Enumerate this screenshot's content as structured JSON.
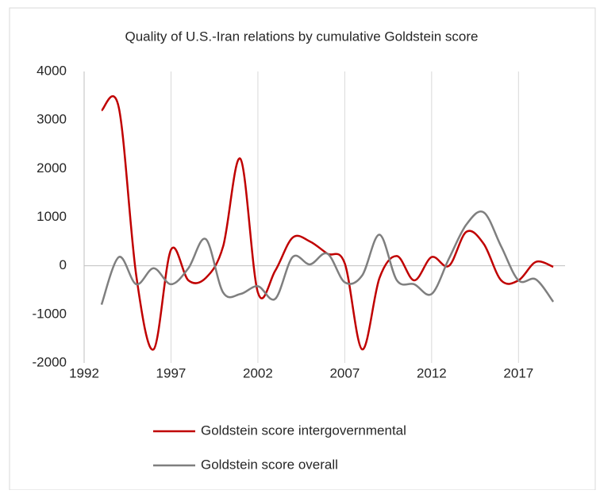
{
  "chart_data": {
    "type": "line",
    "title": "Quality of U.S.-Iran relations by cumulative Goldstein score",
    "x": [
      1993,
      1994,
      1995,
      1996,
      1997,
      1998,
      1999,
      2000,
      2001,
      2002,
      2003,
      2004,
      2005,
      2006,
      2007,
      2008,
      2009,
      2010,
      2011,
      2012,
      2013,
      2014,
      2015,
      2016,
      2017,
      2018,
      2019
    ],
    "series": [
      {
        "name": "Goldstein score intergovernmental",
        "color": "#c00000",
        "values": [
          3200,
          3250,
          -200,
          -1720,
          330,
          -300,
          -250,
          400,
          2200,
          -550,
          -100,
          580,
          500,
          250,
          50,
          -1720,
          -250,
          200,
          -300,
          180,
          0,
          700,
          450,
          -300,
          -300,
          80,
          -20
        ]
      },
      {
        "name": "Goldstein score overall",
        "color": "#7f7f7f",
        "values": [
          -800,
          180,
          -380,
          -50,
          -380,
          -50,
          550,
          -550,
          -580,
          -420,
          -680,
          180,
          30,
          250,
          -340,
          -200,
          640,
          -300,
          -380,
          -580,
          150,
          850,
          1100,
          400,
          -300,
          -280,
          -740
        ]
      }
    ],
    "xlim": [
      1992,
      2020
    ],
    "xticks": [
      1992,
      1997,
      2002,
      2007,
      2012,
      2017
    ],
    "ylim": [
      -2000,
      4000
    ],
    "yticks": [
      -2000,
      -1000,
      0,
      1000,
      2000,
      3000,
      4000
    ],
    "grid": "vertical",
    "smooth": true,
    "legend": "bottom"
  }
}
